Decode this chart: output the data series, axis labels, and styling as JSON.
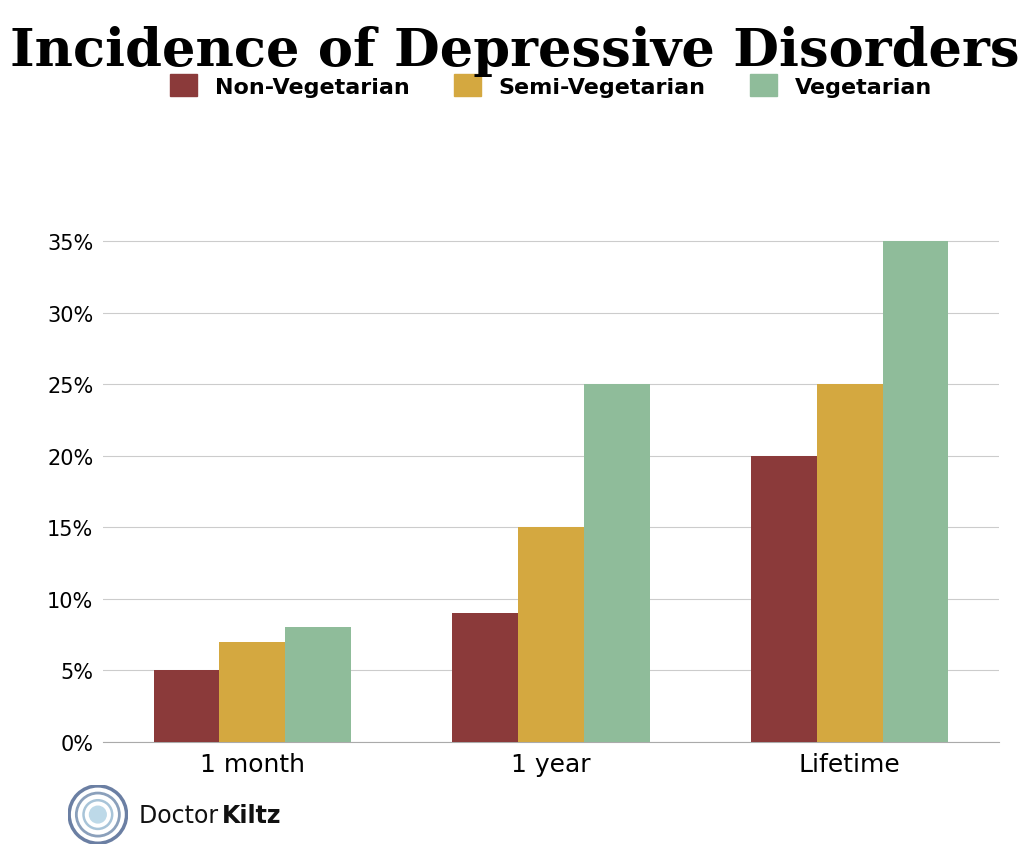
{
  "title": "Incidence of Depressive Disorders",
  "categories": [
    "1 month",
    "1 year",
    "Lifetime"
  ],
  "series": {
    "Non-Vegetarian": [
      5,
      9,
      20
    ],
    "Semi-Vegetarian": [
      7,
      15,
      25
    ],
    "Vegetarian": [
      8,
      25,
      35
    ]
  },
  "colors": {
    "Non-Vegetarian": "#8B3A3A",
    "Semi-Vegetarian": "#D4A840",
    "Vegetarian": "#8FBC9A"
  },
  "ylim": [
    0,
    37
  ],
  "yticks": [
    0,
    5,
    10,
    15,
    20,
    25,
    30,
    35
  ],
  "ytick_labels": [
    "0%",
    "5%",
    "10%",
    "15%",
    "20%",
    "25%",
    "30%",
    "35%"
  ],
  "background_color": "#FFFFFF",
  "title_fontsize": 38,
  "legend_fontsize": 16,
  "tick_fontsize": 15,
  "xlabel_fontsize": 18,
  "bar_width": 0.22
}
